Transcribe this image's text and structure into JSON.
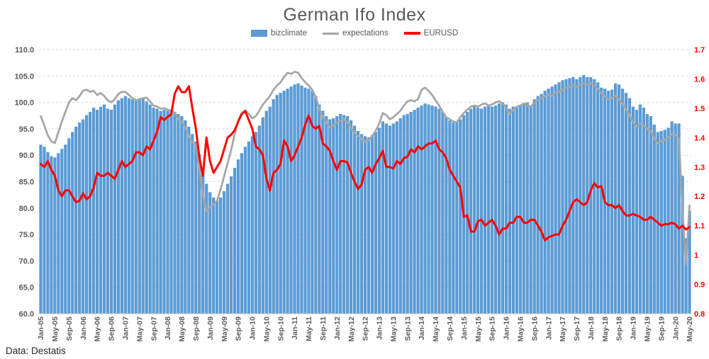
{
  "title": "German Ifo Index",
  "source_note": "Data: Destatis",
  "legend": {
    "items": [
      {
        "label": "bizclimate",
        "marker": "bar-swatch",
        "color": "#5B9BD5"
      },
      {
        "label": "expectations",
        "marker": "line",
        "color": "#A6A6A6"
      },
      {
        "label": "EURUSD",
        "marker": "line",
        "color": "#FF0000"
      }
    ]
  },
  "colors": {
    "bar_blue": "#5B9BD5",
    "line_gray": "#A6A6A6",
    "line_red": "#FF0000",
    "gridline": "#D9D9D9",
    "axis_text": "#595959",
    "right_axis_text": "#FF0000",
    "title_text": "#595959",
    "source_text": "#262626"
  },
  "chart_data": {
    "type": "combo-bar-line",
    "title": "German Ifo Index",
    "grid": "horizontal-dashed",
    "legend_position": "top-center",
    "x_frequency": "monthly",
    "x_range": "Jan-05 to May-20",
    "x_tick_labels": [
      "Jan-05",
      "May-05",
      "Sep-05",
      "Jan-06",
      "May-06",
      "Sep-06",
      "Jan-07",
      "May-07",
      "Sep-07",
      "Jan-08",
      "May-08",
      "Sep-08",
      "Jan-09",
      "May-09",
      "Sep-09",
      "Jan-10",
      "May-10",
      "Sep-10",
      "Jan-11",
      "May-11",
      "Sep-11",
      "Jan-12",
      "May-12",
      "Sep-12",
      "Jan-13",
      "May-13",
      "Sep-13",
      "Jan-14",
      "May-14",
      "Sep-14",
      "Jan-15",
      "May-15",
      "Sep-15",
      "Jan-16",
      "May-16",
      "Sep-16",
      "Jan-17",
      "May-17",
      "Sep-17",
      "Jan-18",
      "May-18",
      "Sep-18",
      "Jan-19",
      "May-19",
      "Sep-19",
      "Jan-20",
      "May-20"
    ],
    "x_tick_every_n_months": 4,
    "left_axis": {
      "min": 60,
      "max": 110,
      "step": 5,
      "labels": [
        "110.0",
        "105.0",
        "100.0",
        "95.0",
        "90.0",
        "85.0",
        "80.0",
        "75.0",
        "70.0",
        "65.0",
        "60.0"
      ]
    },
    "right_axis": {
      "min": 0.8,
      "max": 1.7,
      "step": 0.1,
      "labels": [
        "1.7",
        "1.6",
        "1.5",
        "1.4",
        "1.3",
        "1.2",
        "1.1",
        "1",
        "0.9",
        "0.8"
      ]
    },
    "series": [
      {
        "name": "bizclimate",
        "type": "bar",
        "axis": "left",
        "color": "#5B9BD5",
        "values": [
          92.0,
          91.6,
          90.6,
          89.8,
          89.6,
          90.4,
          91.2,
          92.0,
          93.2,
          94.4,
          95.4,
          96.2,
          96.8,
          97.6,
          98.2,
          99.0,
          98.6,
          99.2,
          99.6,
          98.8,
          98.6,
          99.6,
          100.4,
          100.8,
          101.2,
          100.8,
          100.6,
          100.4,
          100.6,
          100.8,
          100.2,
          99.6,
          99.0,
          98.8,
          98.4,
          98.6,
          98.4,
          98.6,
          98.2,
          97.8,
          97.4,
          96.6,
          95.4,
          94.0,
          92.6,
          90.2,
          87.0,
          84.6,
          83.0,
          82.0,
          81.4,
          82.0,
          83.2,
          84.6,
          86.0,
          87.6,
          89.2,
          90.4,
          91.6,
          92.6,
          93.6,
          94.4,
          95.6,
          97.2,
          98.4,
          99.2,
          100.6,
          101.4,
          101.8,
          102.2,
          102.6,
          103.0,
          103.4,
          103.6,
          103.2,
          102.8,
          102.6,
          102.2,
          101.2,
          99.6,
          98.4,
          97.4,
          96.8,
          97.0,
          97.4,
          97.8,
          97.6,
          97.4,
          96.6,
          95.6,
          94.6,
          94.0,
          93.6,
          93.4,
          93.8,
          94.4,
          95.2,
          96.4,
          96.0,
          95.6,
          96.0,
          96.4,
          97.0,
          97.6,
          97.8,
          98.2,
          98.6,
          99.0,
          99.4,
          99.8,
          99.6,
          99.4,
          99.2,
          98.8,
          98.2,
          97.2,
          96.6,
          96.2,
          96.4,
          96.8,
          97.6,
          98.2,
          98.8,
          99.2,
          99.0,
          98.8,
          99.2,
          99.4,
          99.2,
          99.4,
          99.8,
          100.0,
          99.6,
          98.8,
          99.2,
          99.0,
          99.4,
          99.8,
          100.0,
          99.4,
          100.6,
          101.2,
          101.6,
          102.2,
          102.6,
          103.0,
          103.4,
          103.8,
          104.2,
          104.4,
          104.6,
          104.8,
          104.4,
          104.8,
          105.2,
          104.8,
          104.8,
          104.4,
          103.8,
          102.8,
          102.6,
          102.2,
          102.4,
          103.6,
          103.4,
          102.6,
          101.8,
          100.8,
          99.2,
          98.6,
          99.6,
          99.0,
          97.8,
          97.4,
          95.8,
          94.4,
          94.6,
          94.8,
          95.2,
          96.4,
          96.0,
          96.0,
          86.1,
          74.3,
          79.5
        ]
      },
      {
        "name": "expectations",
        "type": "line",
        "axis": "left",
        "color": "#A6A6A6",
        "values": [
          97.4,
          95.6,
          93.8,
          92.6,
          92.3,
          94.4,
          96.4,
          98.2,
          100.0,
          100.8,
          100.4,
          101.2,
          102.2,
          102.4,
          102.0,
          102.2,
          101.4,
          101.8,
          101.2,
          100.4,
          100.0,
          100.6,
          101.6,
          102.0,
          102.0,
          101.4,
          100.8,
          100.4,
          100.6,
          100.8,
          100.9,
          100.2,
          99.4,
          99.2,
          98.8,
          98.9,
          98.6,
          98.4,
          98.0,
          96.8,
          96.4,
          95.2,
          93.6,
          92.4,
          92.0,
          87.5,
          82.5,
          79.4,
          80.2,
          80.6,
          81.4,
          83.5,
          86.0,
          88.5,
          91.0,
          94.0,
          96.5,
          98.0,
          98.5,
          97.8,
          97.0,
          97.4,
          98.4,
          99.6,
          100.4,
          101.2,
          102.4,
          103.2,
          103.8,
          104.8,
          105.6,
          105.4,
          105.8,
          105.6,
          104.6,
          103.8,
          103.2,
          102.4,
          101.0,
          98.8,
          97.2,
          96.2,
          95.2,
          95.6,
          96.2,
          96.6,
          96.8,
          96.2,
          95.2,
          94.2,
          93.6,
          93.0,
          92.6,
          92.8,
          93.6,
          94.6,
          96.0,
          98.0,
          97.6,
          96.8,
          97.2,
          97.8,
          98.4,
          99.4,
          100.2,
          100.4,
          100.2,
          100.6,
          102.4,
          102.8,
          102.2,
          101.4,
          100.4,
          99.4,
          98.2,
          97.2,
          96.8,
          96.4,
          96.2,
          97.2,
          98.0,
          98.6,
          99.2,
          99.4,
          99.2,
          99.6,
          99.8,
          99.4,
          99.6,
          100.0,
          100.2,
          99.8,
          99.0,
          97.8,
          98.6,
          99.2,
          99.4,
          99.8,
          99.4,
          99.2,
          100.0,
          100.4,
          100.8,
          101.2,
          101.4,
          101.2,
          101.8,
          102.0,
          102.4,
          102.8,
          103.0,
          103.2,
          103.0,
          103.4,
          103.6,
          103.4,
          103.6,
          103.2,
          102.6,
          101.8,
          101.2,
          100.6,
          100.8,
          101.2,
          100.6,
          99.8,
          98.6,
          97.6,
          96.2,
          95.4,
          96.0,
          95.6,
          95.0,
          94.6,
          93.2,
          92.2,
          92.6,
          93.0,
          93.4,
          94.0,
          93.8,
          93.2,
          79.5,
          69.4,
          80.5
        ]
      },
      {
        "name": "EURUSD",
        "type": "line",
        "axis": "right",
        "color": "#FF0000",
        "values": [
          1.31,
          1.3,
          1.32,
          1.29,
          1.27,
          1.22,
          1.2,
          1.22,
          1.22,
          1.2,
          1.18,
          1.185,
          1.21,
          1.19,
          1.2,
          1.23,
          1.28,
          1.27,
          1.27,
          1.28,
          1.27,
          1.26,
          1.29,
          1.32,
          1.3,
          1.31,
          1.32,
          1.35,
          1.35,
          1.34,
          1.37,
          1.36,
          1.39,
          1.42,
          1.47,
          1.46,
          1.47,
          1.48,
          1.55,
          1.575,
          1.555,
          1.555,
          1.575,
          1.5,
          1.43,
          1.33,
          1.27,
          1.4,
          1.32,
          1.28,
          1.3,
          1.32,
          1.36,
          1.4,
          1.41,
          1.425,
          1.455,
          1.48,
          1.49,
          1.46,
          1.43,
          1.37,
          1.36,
          1.34,
          1.26,
          1.22,
          1.28,
          1.29,
          1.31,
          1.39,
          1.37,
          1.32,
          1.34,
          1.37,
          1.4,
          1.445,
          1.475,
          1.44,
          1.43,
          1.44,
          1.38,
          1.37,
          1.355,
          1.32,
          1.29,
          1.32,
          1.32,
          1.315,
          1.28,
          1.25,
          1.225,
          1.24,
          1.29,
          1.3,
          1.28,
          1.31,
          1.33,
          1.355,
          1.3,
          1.3,
          1.295,
          1.32,
          1.31,
          1.33,
          1.335,
          1.36,
          1.35,
          1.37,
          1.36,
          1.37,
          1.38,
          1.38,
          1.39,
          1.36,
          1.35,
          1.33,
          1.29,
          1.27,
          1.25,
          1.23,
          1.13,
          1.135,
          1.08,
          1.08,
          1.115,
          1.12,
          1.1,
          1.11,
          1.12,
          1.1,
          1.07,
          1.09,
          1.09,
          1.11,
          1.11,
          1.13,
          1.13,
          1.11,
          1.11,
          1.12,
          1.12,
          1.1,
          1.08,
          1.05,
          1.06,
          1.065,
          1.07,
          1.07,
          1.1,
          1.12,
          1.15,
          1.18,
          1.19,
          1.18,
          1.17,
          1.18,
          1.22,
          1.245,
          1.23,
          1.235,
          1.18,
          1.17,
          1.17,
          1.16,
          1.17,
          1.15,
          1.135,
          1.135,
          1.14,
          1.135,
          1.13,
          1.12,
          1.12,
          1.13,
          1.12,
          1.11,
          1.1,
          1.105,
          1.105,
          1.11,
          1.105,
          1.09,
          1.1,
          1.087,
          1.095
        ]
      }
    ]
  }
}
